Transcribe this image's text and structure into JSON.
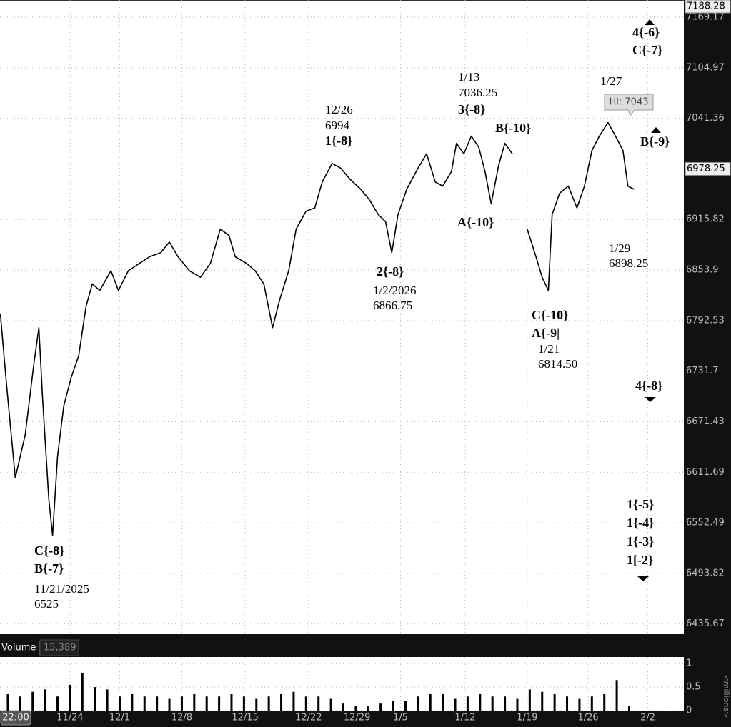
{
  "chart_data": [
    {
      "type": "line",
      "log_scale": true,
      "grid": true,
      "color": "#000000",
      "xlim": [
        -5.63,
        49.4
      ],
      "ylim": [
        6424,
        7191
      ],
      "xticks": [
        {
          "value": 0,
          "label": "11/24"
        },
        {
          "value": 4,
          "label": "12/1"
        },
        {
          "value": 9,
          "label": "12/8"
        },
        {
          "value": 14.1,
          "label": "12/15"
        },
        {
          "value": 19.2,
          "label": "12/22"
        },
        {
          "value": 23.1,
          "label": "12/29"
        },
        {
          "value": 26.6,
          "label": "1/5"
        },
        {
          "value": 31.8,
          "label": "1/12"
        },
        {
          "value": 36.8,
          "label": "1/19"
        },
        {
          "value": 41.7,
          "label": "1/26"
        },
        {
          "value": 46.5,
          "label": "2/2"
        }
      ],
      "yticks": [
        7169.17,
        7104.97,
        7041.36,
        6915.82,
        6853.9,
        6792.53,
        6731.7,
        6671.43,
        6611.69,
        6552.49,
        6493.82,
        6435.67
      ],
      "top_price": 7188.28,
      "current_price": 6978.25,
      "cursor_label": "22:00",
      "hi_label": "Hi: 7043",
      "x": [
        -5.6,
        -5.1,
        -4.4,
        -3.6,
        -2.9,
        -2.5,
        -2.2,
        -1.7,
        -1.4,
        -1.0,
        -0.5,
        0.1,
        0.7,
        1.3,
        1.8,
        2.4,
        3.3,
        3.9,
        4.7,
        5.6,
        6.4,
        7.3,
        8.0,
        8.7,
        9.6,
        10.5,
        11.3,
        12.1,
        12.8,
        13.3,
        14.2,
        14.9,
        15.6,
        16.3,
        16.9,
        17.6,
        18.2,
        19.0,
        19.7,
        20.3,
        21.1,
        21.8,
        22.5,
        23.4,
        24.1,
        24.8,
        25.4,
        25.9,
        26.4,
        27.1,
        28.0,
        28.7,
        29.4,
        30.0,
        30.7,
        31.1,
        31.7,
        32.3,
        32.9,
        33.4,
        33.9,
        34.5,
        35.0,
        35.6,
        36.1,
        36.8,
        37.5,
        38.0,
        38.5,
        38.8,
        39.4,
        40.1,
        40.8,
        41.4,
        42.0,
        42.6,
        43.3,
        43.9,
        44.5,
        44.9,
        45.4
      ],
      "values": [
        6801,
        6715,
        6605,
        6656,
        6741,
        6784,
        6699,
        6580,
        6538,
        6630,
        6690,
        6724,
        6750,
        6810,
        6837,
        6829,
        6853,
        6829,
        6853,
        6862,
        6870,
        6875,
        6888,
        6870,
        6853,
        6845,
        6862,
        6904,
        6896,
        6870,
        6862,
        6853,
        6837,
        6784,
        6819,
        6853,
        6904,
        6926,
        6930,
        6962,
        6985,
        6979,
        6966,
        6953,
        6940,
        6922,
        6913,
        6875,
        6922,
        6953,
        6979,
        6997,
        6962,
        6957,
        6975,
        7010,
        6997,
        7019,
        7005,
        6975,
        6935,
        6983,
        7010,
        6997,
        null,
        6904,
        6870,
        6845,
        6829,
        6922,
        6948,
        6957,
        6930,
        6957,
        7001,
        7019,
        7036,
        7019,
        7001,
        6957,
        6953
      ],
      "annotations": [
        "12/26",
        "6994",
        "1{-8}",
        "1/13",
        "7036.25",
        "3{-8}",
        "B{-10}",
        "1/27",
        "4{-6}",
        "C{-7}",
        "B{-9}",
        "A{-10}",
        "2{-8}",
        "1/2/2026",
        "6866.75",
        "1/29",
        "6898.25",
        "C{-10}",
        "A{-9|",
        "1/21",
        "6814.50",
        "4{-8}",
        "1{-5}",
        "1{-4}",
        "1{-3}",
        "1[-2}",
        "C{-8}",
        "B{-7}",
        "11/21/2025",
        "6525"
      ]
    },
    {
      "type": "bar",
      "title": "Volume",
      "last_value_label": "15,389",
      "y_label": "<millions>",
      "color": "#000000",
      "xlim": [
        -5.63,
        49.4
      ],
      "ylim": [
        0,
        1.14
      ],
      "yticks": [
        0,
        0.5,
        1
      ],
      "x": [
        -5,
        -4,
        -3,
        -2,
        -1,
        0,
        1,
        2,
        3,
        4,
        5,
        6,
        7,
        8,
        9,
        10,
        11,
        12,
        13,
        14,
        15,
        16,
        17,
        18,
        19,
        20,
        21,
        22,
        23,
        24,
        25,
        26,
        27,
        28,
        29,
        30,
        31,
        32,
        33,
        34,
        35,
        36,
        37,
        38,
        39,
        40,
        41,
        42,
        43,
        44,
        45
      ],
      "values": [
        0.35,
        0.3,
        0.4,
        0.45,
        0.3,
        0.55,
        0.8,
        0.5,
        0.45,
        0.3,
        0.35,
        0.3,
        0.3,
        0.25,
        0.3,
        0.35,
        0.3,
        0.3,
        0.35,
        0.3,
        0.25,
        0.3,
        0.35,
        0.4,
        0.3,
        0.3,
        0.25,
        0.15,
        0.1,
        0.1,
        0.15,
        0.2,
        0.2,
        0.3,
        0.35,
        0.35,
        0.25,
        0.3,
        0.35,
        0.3,
        0.3,
        0.25,
        0.45,
        0.4,
        0.35,
        0.3,
        0.25,
        0.3,
        0.35,
        0.65,
        0.1
      ]
    }
  ]
}
